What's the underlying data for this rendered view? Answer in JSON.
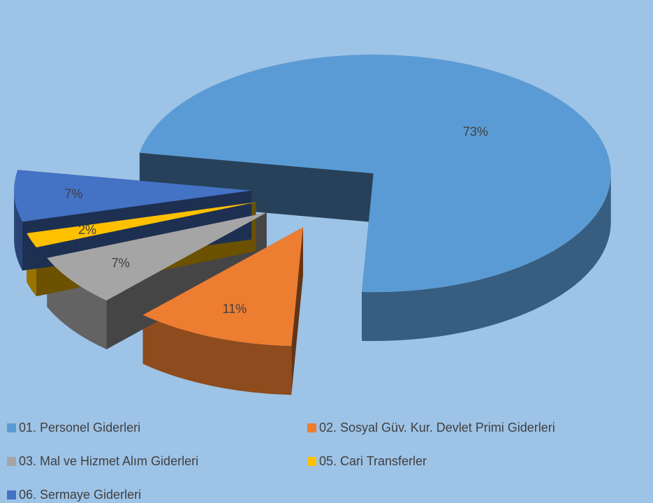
{
  "chart_data": {
    "type": "pie",
    "categories": [
      "01. Personel Giderleri",
      "02. Sosyal Güv. Kur. Devlet Primi Giderleri",
      "03. Mal ve Hizmet Alım Giderleri",
      "05. Cari Transferler",
      "06. Sermaye Giderleri"
    ],
    "values": [
      73,
      11,
      7,
      2,
      7
    ],
    "value_labels": [
      "73%",
      "11%",
      "7%",
      "2%",
      "7%"
    ],
    "colors": [
      "#5b9bd5",
      "#ed7d31",
      "#a5a5a5",
      "#ffc000",
      "#4472c4"
    ],
    "legend": "bottom"
  }
}
